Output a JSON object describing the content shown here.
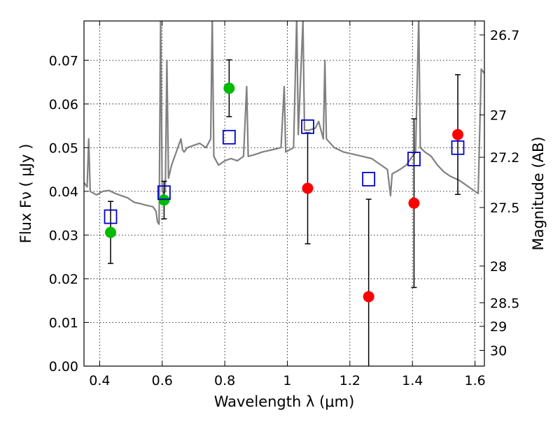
{
  "chart_data": {
    "type": "scatter",
    "xlabel": "Wavelength  λ (μm)",
    "ylabel": "Flux  Fν  ( μJy )",
    "ylabel_right": "Magnitude (AB)",
    "xlim": [
      0.35,
      1.63
    ],
    "ylim": [
      0.0,
      0.079
    ],
    "grid": true,
    "x_ticks": [
      0.4,
      0.6,
      0.8,
      1.0,
      1.2,
      1.4,
      1.6
    ],
    "x_tick_labels": [
      "0.4",
      "0.6",
      "0.8",
      "1",
      "1.2",
      "1.4",
      "1.6"
    ],
    "y_ticks": [
      0.0,
      0.01,
      0.02,
      0.03,
      0.04,
      0.05,
      0.06,
      0.07
    ],
    "y_tick_labels": [
      "0.00",
      "0.01",
      "0.02",
      "0.03",
      "0.04",
      "0.05",
      "0.06",
      "0.07"
    ],
    "right_ticks": [
      {
        "flux": 0.0758,
        "label": "26.7"
      },
      {
        "flux": 0.0575,
        "label": "27"
      },
      {
        "flux": 0.0478,
        "label": "27.2"
      },
      {
        "flux": 0.0363,
        "label": "27.5"
      },
      {
        "flux": 0.0229,
        "label": "28"
      },
      {
        "flux": 0.0145,
        "label": "28.5"
      },
      {
        "flux": 0.0091,
        "label": "29"
      },
      {
        "flux": 0.0036,
        "label": "30"
      }
    ],
    "series": [
      {
        "marker": "circle",
        "color": "#00bb00",
        "points": [
          {
            "x": 0.435,
            "y": 0.0306,
            "err": 0.0071
          },
          {
            "x": 0.606,
            "y": 0.038,
            "err": 0.0043
          },
          {
            "x": 0.814,
            "y": 0.0636,
            "err": 0.0065
          }
        ]
      },
      {
        "marker": "circle",
        "color": "#ff0000",
        "points": [
          {
            "x": 1.065,
            "y": 0.0407,
            "err": 0.0127
          },
          {
            "x": 1.26,
            "y": 0.0159,
            "err": 0.0223
          },
          {
            "x": 1.405,
            "y": 0.0373,
            "err": 0.0193
          },
          {
            "x": 1.545,
            "y": 0.053,
            "err": 0.0137
          }
        ]
      },
      {
        "marker": "open-square",
        "color": "#0000cc",
        "points": [
          {
            "x": 0.435,
            "y": 0.0342
          },
          {
            "x": 0.606,
            "y": 0.0397
          },
          {
            "x": 0.814,
            "y": 0.0524
          },
          {
            "x": 1.065,
            "y": 0.0548
          },
          {
            "x": 1.26,
            "y": 0.0428
          },
          {
            "x": 1.405,
            "y": 0.0474
          },
          {
            "x": 1.545,
            "y": 0.05
          }
        ]
      },
      {
        "marker": "line",
        "color": "#808080",
        "points": [
          {
            "x": 0.35,
            "y": 0.042
          },
          {
            "x": 0.36,
            "y": 0.041
          },
          {
            "x": 0.365,
            "y": 0.052
          },
          {
            "x": 0.37,
            "y": 0.04
          },
          {
            "x": 0.39,
            "y": 0.0392
          },
          {
            "x": 0.41,
            "y": 0.04
          },
          {
            "x": 0.43,
            "y": 0.0402
          },
          {
            "x": 0.45,
            "y": 0.0395
          },
          {
            "x": 0.47,
            "y": 0.039
          },
          {
            "x": 0.49,
            "y": 0.0385
          },
          {
            "x": 0.51,
            "y": 0.0375
          },
          {
            "x": 0.53,
            "y": 0.0372
          },
          {
            "x": 0.55,
            "y": 0.0368
          },
          {
            "x": 0.57,
            "y": 0.0365
          },
          {
            "x": 0.58,
            "y": 0.0355
          },
          {
            "x": 0.585,
            "y": 0.033
          },
          {
            "x": 0.59,
            "y": 0.0325
          },
          {
            "x": 0.595,
            "y": 0.08
          },
          {
            "x": 0.6,
            "y": 0.04
          },
          {
            "x": 0.605,
            "y": 0.0395
          },
          {
            "x": 0.61,
            "y": 0.04
          },
          {
            "x": 0.615,
            "y": 0.07
          },
          {
            "x": 0.62,
            "y": 0.043
          },
          {
            "x": 0.63,
            "y": 0.046
          },
          {
            "x": 0.65,
            "y": 0.05
          },
          {
            "x": 0.66,
            "y": 0.052
          },
          {
            "x": 0.665,
            "y": 0.0495
          },
          {
            "x": 0.67,
            "y": 0.049
          },
          {
            "x": 0.68,
            "y": 0.05
          },
          {
            "x": 0.7,
            "y": 0.0505
          },
          {
            "x": 0.72,
            "y": 0.051
          },
          {
            "x": 0.74,
            "y": 0.05
          },
          {
            "x": 0.755,
            "y": 0.052
          },
          {
            "x": 0.76,
            "y": 0.08
          },
          {
            "x": 0.765,
            "y": 0.048
          },
          {
            "x": 0.78,
            "y": 0.046
          },
          {
            "x": 0.8,
            "y": 0.047
          },
          {
            "x": 0.82,
            "y": 0.0475
          },
          {
            "x": 0.84,
            "y": 0.047
          },
          {
            "x": 0.86,
            "y": 0.048
          },
          {
            "x": 0.87,
            "y": 0.064
          },
          {
            "x": 0.875,
            "y": 0.048
          },
          {
            "x": 0.9,
            "y": 0.0485
          },
          {
            "x": 0.92,
            "y": 0.049
          },
          {
            "x": 0.95,
            "y": 0.0495
          },
          {
            "x": 0.98,
            "y": 0.05
          },
          {
            "x": 0.99,
            "y": 0.064
          },
          {
            "x": 0.995,
            "y": 0.049
          },
          {
            "x": 1.02,
            "y": 0.05
          },
          {
            "x": 1.03,
            "y": 0.08
          },
          {
            "x": 1.035,
            "y": 0.053
          },
          {
            "x": 1.05,
            "y": 0.079
          },
          {
            "x": 1.055,
            "y": 0.054
          },
          {
            "x": 1.07,
            "y": 0.054
          },
          {
            "x": 1.09,
            "y": 0.0545
          },
          {
            "x": 1.1,
            "y": 0.056
          },
          {
            "x": 1.115,
            "y": 0.052
          },
          {
            "x": 1.12,
            "y": 0.07
          },
          {
            "x": 1.125,
            "y": 0.052
          },
          {
            "x": 1.15,
            "y": 0.05
          },
          {
            "x": 1.18,
            "y": 0.049
          },
          {
            "x": 1.21,
            "y": 0.0485
          },
          {
            "x": 1.24,
            "y": 0.048
          },
          {
            "x": 1.27,
            "y": 0.0475
          },
          {
            "x": 1.3,
            "y": 0.046
          },
          {
            "x": 1.32,
            "y": 0.045
          },
          {
            "x": 1.33,
            "y": 0.039
          },
          {
            "x": 1.335,
            "y": 0.044
          },
          {
            "x": 1.36,
            "y": 0.045
          },
          {
            "x": 1.38,
            "y": 0.046
          },
          {
            "x": 1.4,
            "y": 0.048
          },
          {
            "x": 1.41,
            "y": 0.049
          },
          {
            "x": 1.42,
            "y": 0.08
          },
          {
            "x": 1.425,
            "y": 0.05
          },
          {
            "x": 1.44,
            "y": 0.049
          },
          {
            "x": 1.46,
            "y": 0.048
          },
          {
            "x": 1.48,
            "y": 0.046
          },
          {
            "x": 1.5,
            "y": 0.0445
          },
          {
            "x": 1.52,
            "y": 0.0435
          },
          {
            "x": 1.55,
            "y": 0.0425
          },
          {
            "x": 1.58,
            "y": 0.041
          },
          {
            "x": 1.6,
            "y": 0.04
          },
          {
            "x": 1.61,
            "y": 0.0395
          },
          {
            "x": 1.62,
            "y": 0.068
          },
          {
            "x": 1.63,
            "y": 0.067
          }
        ]
      }
    ]
  }
}
